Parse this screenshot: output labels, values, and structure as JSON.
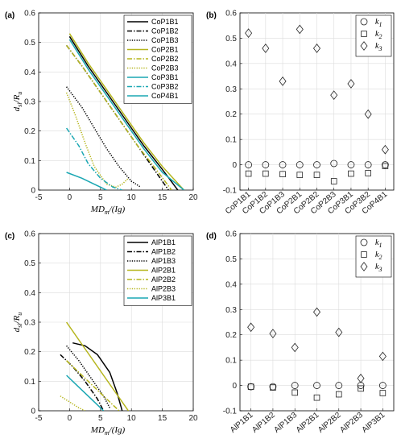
{
  "chart_data": [
    {
      "panel": "(a)",
      "type": "line",
      "xlabel": "MD_m/(Ig)",
      "ylabel": "d_si/R_u",
      "xlim": [
        -5,
        20
      ],
      "ylim": [
        0,
        0.6
      ],
      "xticks": [
        -5,
        0,
        5,
        10,
        15,
        20
      ],
      "yticks": [
        0,
        0.1,
        0.2,
        0.3,
        0.4,
        0.5,
        0.6
      ],
      "grid": true,
      "legend": "top-right",
      "series": [
        {
          "name": "CoP1B1",
          "color": "#000000",
          "dash": "solid",
          "points": [
            [
              0,
              0.52
            ],
            [
              3,
              0.42
            ],
            [
              6,
              0.33
            ],
            [
              9,
              0.24
            ],
            [
              12,
              0.15
            ],
            [
              15,
              0.07
            ],
            [
              17.5,
              0
            ]
          ]
        },
        {
          "name": "CoP1B2",
          "color": "#000000",
          "dash": "dashdot",
          "points": [
            [
              -0.5,
              0.49
            ],
            [
              2,
              0.42
            ],
            [
              5,
              0.33
            ],
            [
              8,
              0.24
            ],
            [
              11,
              0.15
            ],
            [
              14,
              0.06
            ],
            [
              16,
              0
            ]
          ]
        },
        {
          "name": "CoP1B3",
          "color": "#000000",
          "dash": "dotted",
          "points": [
            [
              -0.5,
              0.35
            ],
            [
              2,
              0.28
            ],
            [
              4,
              0.21
            ],
            [
              6,
              0.14
            ],
            [
              8,
              0.08
            ],
            [
              10,
              0.03
            ],
            [
              11.5,
              0.01
            ]
          ]
        },
        {
          "name": "CoP2B1",
          "color": "#b5b51c",
          "dash": "solid",
          "points": [
            [
              0,
              0.53
            ],
            [
              3,
              0.43
            ],
            [
              6,
              0.34
            ],
            [
              9,
              0.25
            ],
            [
              12,
              0.16
            ],
            [
              15,
              0.08
            ],
            [
              18.5,
              0
            ]
          ]
        },
        {
          "name": "CoP2B2",
          "color": "#b5b51c",
          "dash": "dashdot",
          "points": [
            [
              -0.5,
              0.49
            ],
            [
              2,
              0.42
            ],
            [
              5,
              0.33
            ],
            [
              8,
              0.24
            ],
            [
              11,
              0.15
            ],
            [
              14,
              0.07
            ],
            [
              16.5,
              0
            ]
          ]
        },
        {
          "name": "CoP2B3",
          "color": "#b5b51c",
          "dash": "dotted",
          "points": [
            [
              -0.5,
              0.33
            ],
            [
              1,
              0.25
            ],
            [
              2.5,
              0.16
            ],
            [
              4,
              0.08
            ],
            [
              6,
              0.02
            ],
            [
              7.5,
              0.01
            ],
            [
              8.5,
              0.02
            ],
            [
              9.5,
              0.04
            ]
          ]
        },
        {
          "name": "CoP3B1",
          "color": "#1aa7b3",
          "dash": "solid",
          "points": [
            [
              0,
              0.51
            ],
            [
              3,
              0.41
            ],
            [
              6,
              0.32
            ],
            [
              9,
              0.23
            ],
            [
              12,
              0.14
            ],
            [
              15,
              0.06
            ],
            [
              18.5,
              0
            ]
          ]
        },
        {
          "name": "CoP3B2",
          "color": "#1aa7b3",
          "dash": "dashdot",
          "points": [
            [
              -0.5,
              0.21
            ],
            [
              1.5,
              0.15
            ],
            [
              3,
              0.09
            ],
            [
              5,
              0.04
            ],
            [
              7,
              0.01
            ],
            [
              8.5,
              0
            ]
          ]
        },
        {
          "name": "CoP4B1",
          "color": "#1aa7b3",
          "dash": "solid",
          "points": [
            [
              -0.5,
              0.06
            ],
            [
              2,
              0.04
            ],
            [
              4,
              0.02
            ],
            [
              6,
              0
            ]
          ]
        }
      ]
    },
    {
      "panel": "(b)",
      "type": "scatter",
      "ylim": [
        -0.1,
        0.6
      ],
      "yticks": [
        -0.1,
        0,
        0.1,
        0.2,
        0.3,
        0.4,
        0.5,
        0.6
      ],
      "grid": true,
      "legend": "top-right",
      "categories": [
        "CoP1B1",
        "CoP1B2",
        "CoP1B3",
        "CoP2B1",
        "CoP2B2",
        "CoP2B3",
        "CoP3B1",
        "CoP3B2",
        "CoP4B1"
      ],
      "series": [
        {
          "name": "k1",
          "marker": "circle",
          "values": [
            0.0,
            0.0,
            0.0,
            0.0,
            0.0,
            0.005,
            0.0,
            0.0,
            0.0
          ]
        },
        {
          "name": "k2",
          "marker": "square",
          "values": [
            -0.035,
            -0.035,
            -0.037,
            -0.04,
            -0.04,
            -0.065,
            -0.035,
            -0.033,
            -0.005
          ]
        },
        {
          "name": "k3",
          "marker": "diamond",
          "values": [
            0.52,
            0.46,
            0.33,
            0.535,
            0.46,
            0.275,
            0.32,
            0.2,
            0.06
          ]
        }
      ]
    },
    {
      "panel": "(c)",
      "type": "line",
      "xlabel": "MD_m/(Ig)",
      "ylabel": "d_si/R_u",
      "xlim": [
        -5,
        20
      ],
      "ylim": [
        0,
        0.6
      ],
      "xticks": [
        -5,
        0,
        5,
        10,
        15,
        20
      ],
      "yticks": [
        0,
        0.1,
        0.2,
        0.3,
        0.4,
        0.5,
        0.6
      ],
      "grid": true,
      "legend": "top-right",
      "series": [
        {
          "name": "AlP1B1",
          "color": "#000000",
          "dash": "solid",
          "points": [
            [
              0.5,
              0.23
            ],
            [
              2.5,
              0.22
            ],
            [
              4.5,
              0.19
            ],
            [
              6.5,
              0.13
            ],
            [
              7.7,
              0.06
            ],
            [
              8.5,
              0
            ]
          ]
        },
        {
          "name": "AlP1B2",
          "color": "#000000",
          "dash": "dashdot",
          "points": [
            [
              -1.5,
              0.19
            ],
            [
              0.5,
              0.15
            ],
            [
              2.5,
              0.1
            ],
            [
              4.5,
              0.04
            ],
            [
              5.5,
              0
            ]
          ]
        },
        {
          "name": "AlP1B3",
          "color": "#000000",
          "dash": "dotted",
          "points": [
            [
              -0.5,
              0.22
            ],
            [
              1.5,
              0.17
            ],
            [
              3.5,
              0.11
            ],
            [
              5.5,
              0.05
            ],
            [
              6.5,
              0.01
            ]
          ]
        },
        {
          "name": "AlP2B1",
          "color": "#b5b51c",
          "dash": "solid",
          "points": [
            [
              -0.5,
              0.3
            ],
            [
              1.5,
              0.24
            ],
            [
              3.5,
              0.18
            ],
            [
              5.5,
              0.12
            ],
            [
              7.5,
              0.06
            ],
            [
              9.5,
              0
            ]
          ]
        },
        {
          "name": "AlP2B2",
          "color": "#b5b51c",
          "dash": "dashdot",
          "points": [
            [
              -0.5,
              0.17
            ],
            [
              1.5,
              0.13
            ],
            [
              3.5,
              0.09
            ],
            [
              5.5,
              0.05
            ],
            [
              7.5,
              0.01
            ],
            [
              8,
              0
            ]
          ]
        },
        {
          "name": "AlP2B3",
          "color": "#b5b51c",
          "dash": "dotted",
          "points": [
            [
              -1.5,
              0.05
            ],
            [
              0,
              0.03
            ],
            [
              1.5,
              0.01
            ],
            [
              2.5,
              0
            ]
          ]
        },
        {
          "name": "AlP3B1",
          "color": "#1aa7b3",
          "dash": "solid",
          "points": [
            [
              -0.5,
              0.12
            ],
            [
              1.5,
              0.08
            ],
            [
              3.5,
              0.04
            ],
            [
              5.5,
              0
            ]
          ]
        }
      ]
    },
    {
      "panel": "(d)",
      "type": "scatter",
      "ylim": [
        -0.1,
        0.6
      ],
      "yticks": [
        -0.1,
        0,
        0.1,
        0.2,
        0.3,
        0.4,
        0.5,
        0.6
      ],
      "grid": true,
      "legend": "top-right",
      "categories": [
        "AlP1B1",
        "AlP1B2",
        "AlP1B3",
        "AlP2B1",
        "AlP2B2",
        "AlP2B3",
        "AlP3B1"
      ],
      "series": [
        {
          "name": "k1",
          "marker": "circle",
          "values": [
            -0.005,
            -0.005,
            0.0,
            0.0,
            0.0,
            0.0,
            0.0
          ]
        },
        {
          "name": "k2",
          "marker": "square",
          "values": [
            -0.005,
            -0.008,
            -0.028,
            -0.048,
            -0.035,
            -0.012,
            -0.03
          ]
        },
        {
          "name": "k3",
          "marker": "diamond",
          "values": [
            0.23,
            0.205,
            0.15,
            0.29,
            0.21,
            0.028,
            0.115
          ]
        }
      ]
    }
  ]
}
